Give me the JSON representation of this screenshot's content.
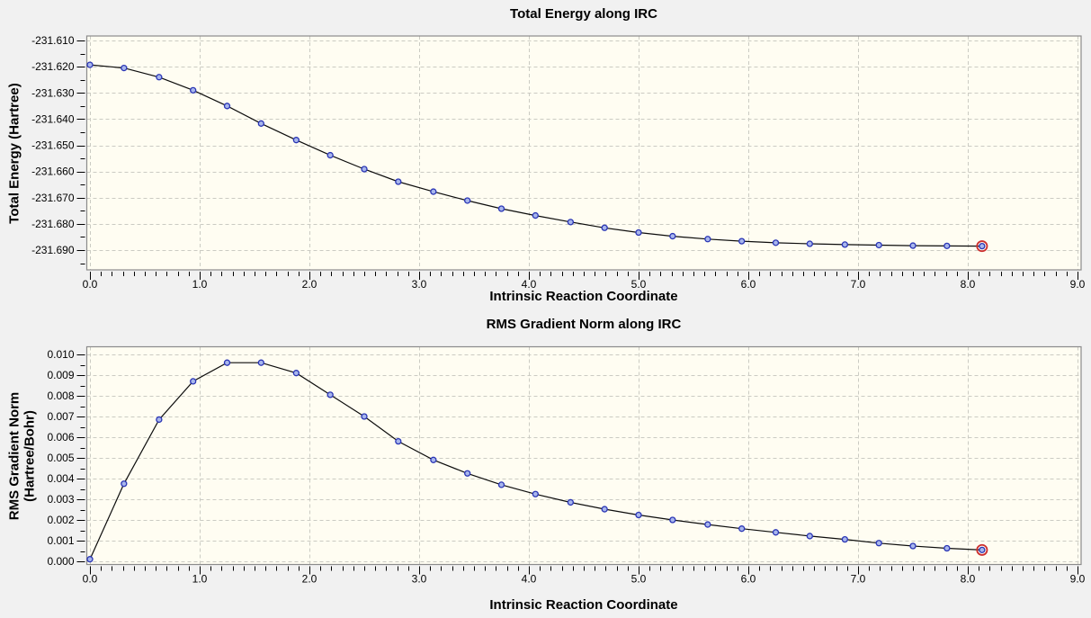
{
  "window": {
    "background": "#f1f1f1"
  },
  "chart_data": [
    {
      "type": "line",
      "title": "Total Energy along IRC",
      "xlabel": "Intrinsic Reaction Coordinate",
      "ylabel": "Total Energy (Hartree)",
      "ylabel_lines": [
        "Total Energy (Hartree)"
      ],
      "x": [
        0.0,
        0.31,
        0.63,
        0.94,
        1.25,
        1.56,
        1.88,
        2.19,
        2.5,
        2.81,
        3.13,
        3.44,
        3.75,
        4.06,
        4.38,
        4.69,
        5.0,
        5.31,
        5.63,
        5.94,
        6.25,
        6.56,
        6.88,
        7.19,
        7.5,
        7.81,
        8.13
      ],
      "y": [
        -231.6193,
        -231.6205,
        -231.624,
        -231.629,
        -231.635,
        -231.6417,
        -231.648,
        -231.6538,
        -231.6591,
        -231.6639,
        -231.6677,
        -231.6711,
        -231.6742,
        -231.6768,
        -231.6793,
        -231.6815,
        -231.6833,
        -231.6847,
        -231.6858,
        -231.6866,
        -231.6872,
        -231.6876,
        -231.6879,
        -231.6881,
        -231.6883,
        -231.6884,
        -231.6885
      ],
      "highlight_index": 26,
      "xlim": [
        -0.0287,
        9.0328
      ],
      "ylim": [
        -231.69755,
        -231.60828
      ],
      "x_major_ticks": [
        0,
        1,
        2,
        3,
        4,
        5,
        6,
        7,
        8,
        9
      ],
      "x_tick_labels": [
        "0.0",
        "1.0",
        "2.0",
        "3.0",
        "4.0",
        "5.0",
        "6.0",
        "7.0",
        "8.0",
        "9.0"
      ],
      "x_minor_step": 0.1,
      "y_major_ticks": [
        -231.61,
        -231.62,
        -231.63,
        -231.64,
        -231.65,
        -231.66,
        -231.67,
        -231.68,
        -231.69
      ],
      "y_tick_labels": [
        "-231.610",
        "-231.620",
        "-231.630",
        "-231.640",
        "-231.650",
        "-231.660",
        "-231.670",
        "-231.680",
        "-231.690"
      ],
      "y_minor_step": 0.005,
      "grid": "dashed",
      "legend": "none",
      "colors": {
        "plot_bg": "#fffdf2",
        "grid": "#cbcbc3",
        "frame": "#8b8b8b",
        "line": "#0c0c0c",
        "marker_fill": "#a8b6ec",
        "marker_stroke": "#2a35b5",
        "highlight_ring": "#cc2f2f",
        "text": "#000000"
      }
    },
    {
      "type": "line",
      "title": "RMS Gradient Norm along IRC",
      "xlabel": "Intrinsic Reaction Coordinate",
      "ylabel": "RMS Gradient Norm (Hartree/Bohr)",
      "ylabel_lines": [
        "RMS Gradient Norm",
        "(Hartree/Bohr)"
      ],
      "x": [
        0.0,
        0.31,
        0.63,
        0.94,
        1.25,
        1.56,
        1.88,
        2.19,
        2.5,
        2.81,
        3.13,
        3.44,
        3.75,
        4.06,
        4.38,
        4.69,
        5.0,
        5.31,
        5.63,
        5.94,
        6.25,
        6.56,
        6.88,
        7.19,
        7.5,
        7.81,
        8.13
      ],
      "y": [
        0.0001,
        0.00375,
        0.00685,
        0.0087,
        0.0096,
        0.0096,
        0.0091,
        0.00805,
        0.007,
        0.0058,
        0.0049,
        0.00425,
        0.0037,
        0.00325,
        0.00285,
        0.00252,
        0.00224,
        0.002,
        0.00178,
        0.00158,
        0.0014,
        0.00122,
        0.00106,
        0.00088,
        0.00074,
        0.00063,
        0.00055
      ],
      "highlight_index": 26,
      "xlim": [
        -0.0287,
        9.0328
      ],
      "ylim": [
        -0.000152,
        0.01037
      ],
      "x_major_ticks": [
        0,
        1,
        2,
        3,
        4,
        5,
        6,
        7,
        8,
        9
      ],
      "x_tick_labels": [
        "0.0",
        "1.0",
        "2.0",
        "3.0",
        "4.0",
        "5.0",
        "6.0",
        "7.0",
        "8.0",
        "9.0"
      ],
      "x_minor_step": 0.1,
      "y_major_ticks": [
        0.0,
        0.001,
        0.002,
        0.003,
        0.004,
        0.005,
        0.006,
        0.007,
        0.008,
        0.009,
        0.01
      ],
      "y_tick_labels": [
        "0.000",
        "0.001",
        "0.002",
        "0.003",
        "0.004",
        "0.005",
        "0.006",
        "0.007",
        "0.008",
        "0.009",
        "0.010"
      ],
      "y_minor_step": 0.0005,
      "grid": "dashed",
      "legend": "none",
      "colors": {
        "plot_bg": "#fffdf2",
        "grid": "#cbcbc3",
        "frame": "#8b8b8b",
        "line": "#0c0c0c",
        "marker_fill": "#a8b6ec",
        "marker_stroke": "#2a35b5",
        "highlight_ring": "#cc2f2f",
        "text": "#000000"
      }
    }
  ]
}
